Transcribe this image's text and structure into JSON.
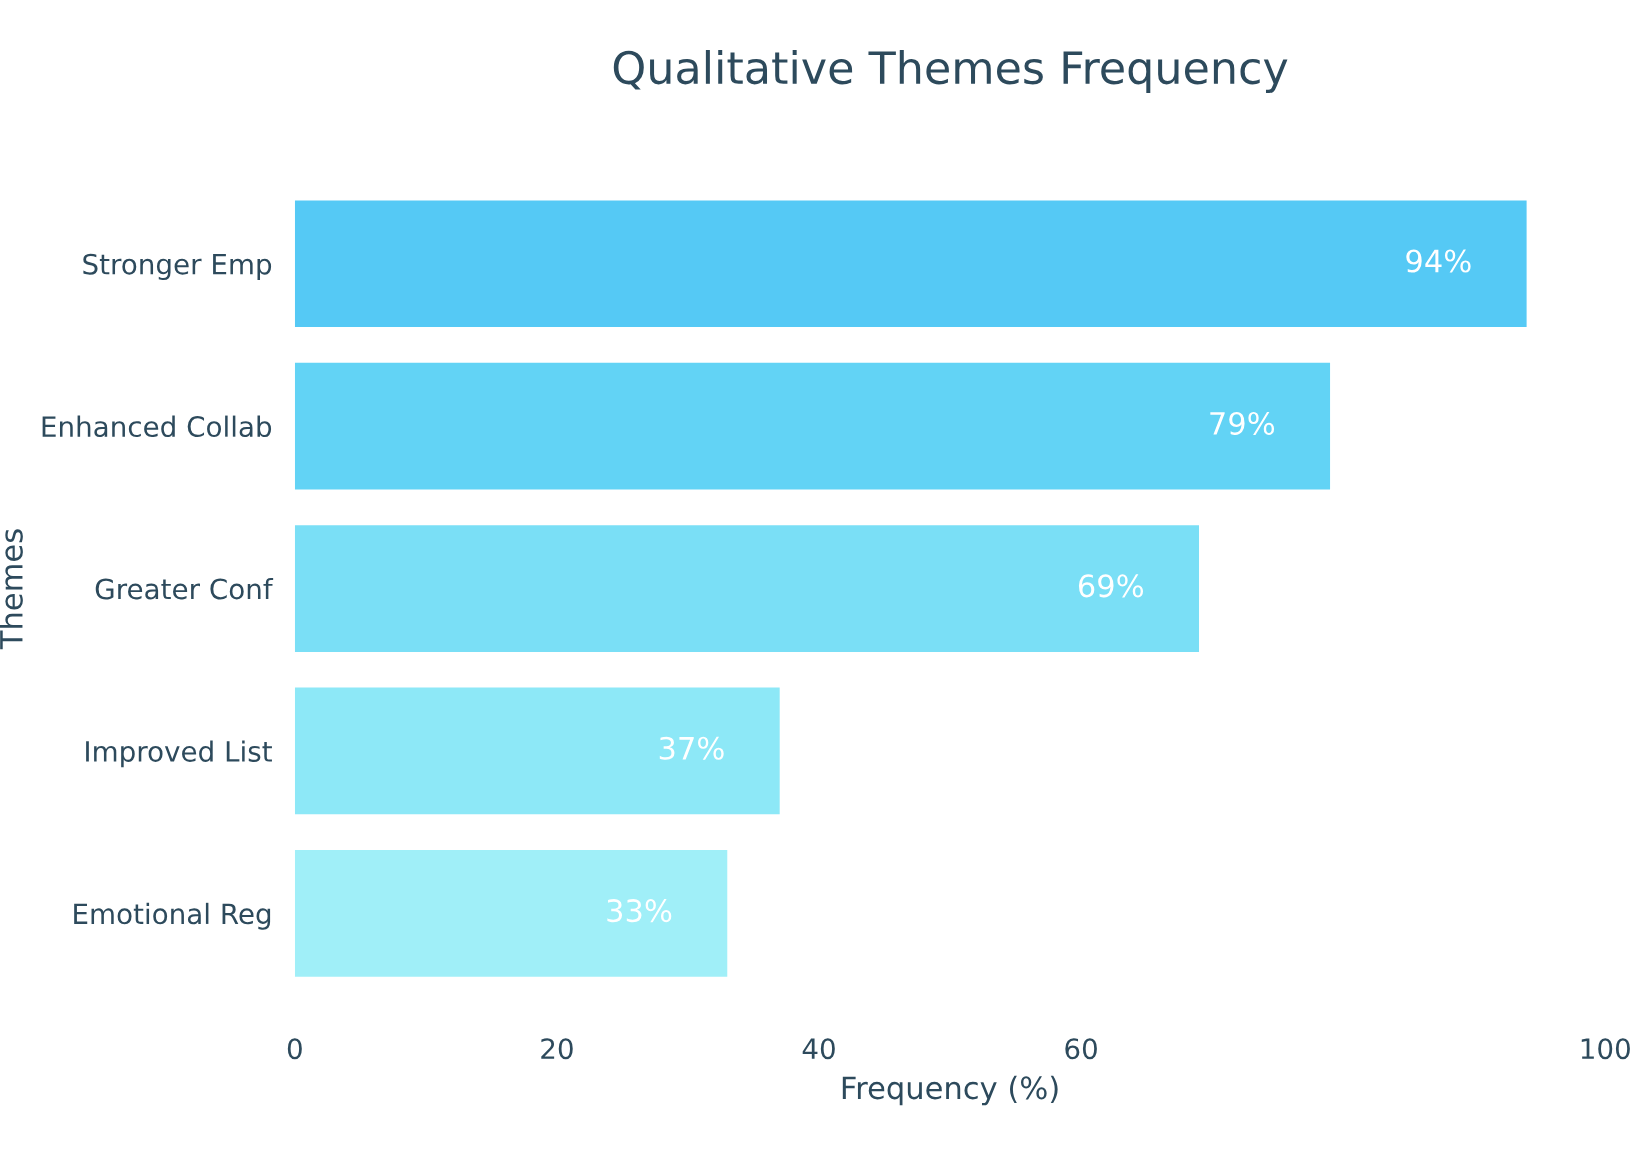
{
  "chart_data": {
    "type": "bar",
    "orientation": "horizontal",
    "title": "Qualitative Themes Frequency",
    "xlabel": "Frequency (%)",
    "ylabel": "Themes",
    "categories": [
      "Stronger Emp",
      "Enhanced Collab",
      "Greater Conf",
      "Improved List",
      "Emotional Reg"
    ],
    "values": [
      94,
      79,
      69,
      37,
      33
    ],
    "value_labels": [
      "94%",
      "79%",
      "69%",
      "37%",
      "33%"
    ],
    "colors": [
      "#55c9f5",
      "#62d3f5",
      "#7adff6",
      "#8de8f7",
      "#a0eff8"
    ],
    "xlim": [
      0,
      100
    ],
    "xticks": [
      0,
      20,
      40,
      60,
      100
    ],
    "grid": false
  }
}
